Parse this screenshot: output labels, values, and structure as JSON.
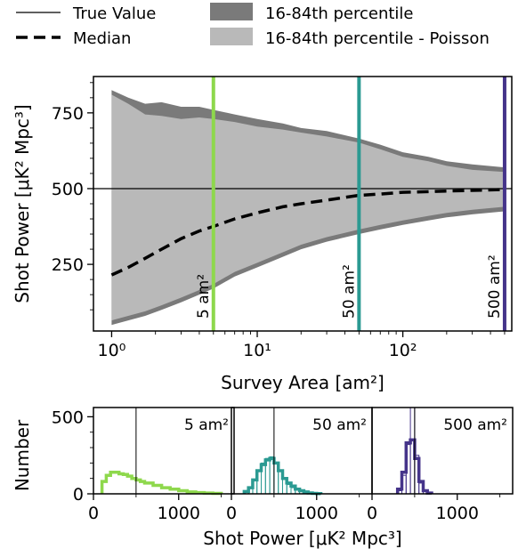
{
  "legend": {
    "items": [
      {
        "label": "True Value",
        "style": "thin-line",
        "color": "#000000"
      },
      {
        "label": "16-84th percentile",
        "style": "patch",
        "color": "#7a7a7a"
      },
      {
        "label": "Median",
        "style": "dashed-line",
        "color": "#000000"
      },
      {
        "label": "16-84th percentile - Poisson",
        "style": "patch",
        "color": "#b9b9b9"
      }
    ]
  },
  "colors": {
    "band_outer": "#7a7a7a",
    "band_inner": "#b9b9b9",
    "median": "#000000",
    "true_value": "#000000",
    "area_5": "#8ed84c",
    "area_50": "#2b9a92",
    "area_500": "#45348a"
  },
  "chart_data": [
    {
      "type": "area",
      "xlabel": "Survey Area [am²]",
      "ylabel": "Shot Power [μK² Mpc³]",
      "xscale": "log",
      "xlim": [
        0.75,
        560
      ],
      "ylim": [
        30,
        870
      ],
      "xticks": [
        1,
        10,
        100
      ],
      "xtick_labels": [
        "10⁰",
        "10¹",
        "10²"
      ],
      "yticks": [
        250,
        500,
        750
      ],
      "ytick_labels": [
        "250",
        "500",
        "750"
      ],
      "true_value": 500,
      "grid": false,
      "legend_position": "above plot",
      "median": {
        "name": "Median",
        "x": [
          1,
          1.3,
          1.7,
          2.2,
          3,
          4,
          5,
          7,
          10,
          15,
          20,
          30,
          50,
          70,
          100,
          150,
          200,
          300,
          500
        ],
        "y": [
          215,
          240,
          270,
          300,
          335,
          360,
          375,
          400,
          420,
          440,
          450,
          462,
          478,
          482,
          488,
          490,
          492,
          494,
          497
        ]
      },
      "band_outer": {
        "name": "16-84th percentile",
        "x": [
          1,
          1.3,
          1.7,
          2.2,
          3,
          4,
          5,
          7,
          10,
          15,
          20,
          30,
          50,
          70,
          100,
          150,
          200,
          300,
          500
        ],
        "lower": [
          50,
          65,
          80,
          100,
          125,
          150,
          170,
          210,
          240,
          275,
          300,
          325,
          350,
          365,
          380,
          395,
          405,
          415,
          425
        ],
        "upper": [
          825,
          800,
          780,
          785,
          770,
          770,
          760,
          745,
          730,
          715,
          700,
          690,
          665,
          645,
          620,
          605,
          590,
          580,
          570
        ]
      },
      "band_inner": {
        "name": "16-84th percentile - Poisson",
        "x": [
          1,
          1.3,
          1.7,
          2.2,
          3,
          4,
          5,
          7,
          10,
          15,
          20,
          30,
          50,
          70,
          100,
          150,
          200,
          300,
          500
        ],
        "lower": [
          65,
          80,
          95,
          115,
          140,
          165,
          185,
          225,
          255,
          290,
          315,
          340,
          365,
          380,
          395,
          410,
          420,
          430,
          440
        ],
        "upper": [
          810,
          780,
          745,
          740,
          730,
          735,
          730,
          720,
          705,
          695,
          685,
          672,
          652,
          630,
          605,
          590,
          575,
          562,
          555
        ]
      },
      "markers": [
        {
          "x": 5,
          "label": "5 am²"
        },
        {
          "x": 50,
          "label": "50 am²"
        },
        {
          "x": 500,
          "label": "500 am²"
        }
      ]
    },
    {
      "type": "histogram",
      "xlabel": "Shot Power [μK² Mpc³]",
      "ylabel": "Number",
      "xlim": [
        0,
        1650
      ],
      "ylim": [
        0,
        560
      ],
      "xticks": [
        0,
        1000
      ],
      "xtick_labels": [
        "0",
        "1000"
      ],
      "yticks": [
        0,
        500
      ],
      "ytick_labels": [
        "0",
        "500"
      ],
      "true_value": 500,
      "panels": [
        {
          "label": "5 am²",
          "bin_edges": [
            100,
            150,
            200,
            250,
            300,
            350,
            400,
            450,
            500,
            550,
            600,
            700,
            800,
            900,
            1000,
            1100,
            1200,
            1300,
            1400,
            1500
          ],
          "counts": [
            80,
            120,
            140,
            140,
            130,
            125,
            115,
            100,
            90,
            80,
            70,
            55,
            40,
            30,
            20,
            12,
            8,
            5,
            3
          ],
          "poisson_counts": []
        },
        {
          "label": "50 am²",
          "bin_edges": [
            150,
            200,
            250,
            300,
            350,
            400,
            450,
            500,
            550,
            600,
            650,
            700,
            750,
            800,
            850,
            900,
            950,
            1000,
            1050
          ],
          "counts": [
            15,
            40,
            90,
            150,
            190,
            220,
            230,
            200,
            150,
            100,
            70,
            50,
            30,
            20,
            12,
            6,
            3,
            1
          ],
          "poisson_counts": [
            10,
            35,
            85,
            150,
            200,
            230,
            240,
            205,
            150,
            95,
            60,
            40,
            25,
            15,
            8,
            4,
            2,
            1
          ]
        },
        {
          "label": "500 am²",
          "bin_edges": [
            300,
            350,
            400,
            450,
            500,
            550,
            600,
            650,
            700
          ],
          "counts": [
            30,
            140,
            330,
            350,
            230,
            80,
            20,
            5
          ],
          "poisson_counts": [
            20,
            120,
            320,
            560,
            250,
            70,
            15,
            3
          ]
        }
      ]
    }
  ]
}
